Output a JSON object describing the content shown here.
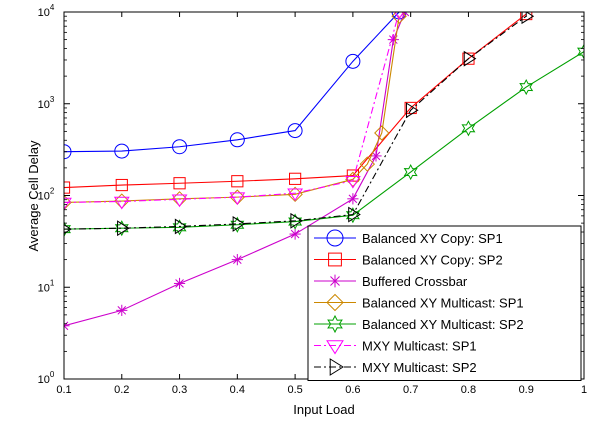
{
  "chart_data": {
    "type": "line",
    "xlabel": "Input Load",
    "ylabel": "Average Cell Delay",
    "xlim": [
      0.1,
      1.0
    ],
    "ylim": [
      1,
      10000
    ],
    "yscale": "log",
    "grid": false,
    "legend_position": "bottom-right",
    "x_ticks": [
      "0.1",
      "0.2",
      "0.3",
      "0.4",
      "0.5",
      "0.6",
      "0.7",
      "0.8",
      "0.9",
      "1"
    ],
    "y_ticks": [
      {
        "base": "10",
        "exp": "0",
        "value": 1
      },
      {
        "base": "10",
        "exp": "1",
        "value": 10
      },
      {
        "base": "10",
        "exp": "2",
        "value": 100
      },
      {
        "base": "10",
        "exp": "3",
        "value": 1000
      },
      {
        "base": "10",
        "exp": "4",
        "value": 10000
      }
    ],
    "series": [
      {
        "name": "Balanced XY Copy: SP1",
        "color": "#0000ff",
        "marker": "circle",
        "dash": "solid",
        "x": [
          0.1,
          0.2,
          0.3,
          0.4,
          0.5,
          0.6,
          0.68
        ],
        "y": [
          300,
          305,
          340,
          405,
          510,
          2900,
          10000
        ]
      },
      {
        "name": "Balanced XY Copy: SP2",
        "color": "#ff0000",
        "marker": "square",
        "dash": "solid",
        "x": [
          0.1,
          0.2,
          0.3,
          0.4,
          0.5,
          0.6,
          0.7,
          0.8,
          0.9
        ],
        "y": [
          122,
          130,
          136,
          143,
          152,
          165,
          900,
          3100,
          9500
        ]
      },
      {
        "name": "Buffered Crossbar",
        "color": "#cc00cc",
        "marker": "asterisk",
        "dash": "solid",
        "x": [
          0.1,
          0.2,
          0.3,
          0.4,
          0.5,
          0.6,
          0.64,
          0.67,
          0.69
        ],
        "y": [
          3.8,
          5.6,
          11,
          20,
          38,
          92,
          270,
          5000,
          10000
        ]
      },
      {
        "name": "Balanced XY Multicast: SP1",
        "color": "#cc8800",
        "marker": "diamond",
        "dash": "solid",
        "x": [
          0.1,
          0.2,
          0.3,
          0.4,
          0.5,
          0.6,
          0.625,
          0.65,
          0.68
        ],
        "y": [
          84,
          87,
          92,
          96,
          103,
          150,
          220,
          480,
          9000
        ]
      },
      {
        "name": "Balanced XY Multicast: SP2",
        "color": "#00a000",
        "marker": "star",
        "dash": "solid",
        "x": [
          0.1,
          0.2,
          0.3,
          0.4,
          0.5,
          0.6,
          0.7,
          0.8,
          0.9,
          1.0
        ],
        "y": [
          43,
          44,
          45,
          48,
          52,
          61,
          180,
          540,
          1520,
          3700
        ]
      },
      {
        "name": "MXY Multicast: SP1",
        "color": "#ff00ff",
        "marker": "triangle-down",
        "dash": "dashdot",
        "x": [
          0.1,
          0.2,
          0.3,
          0.4,
          0.5,
          0.6,
          0.68
        ],
        "y": [
          84,
          86,
          91,
          96,
          106,
          145,
          10000
        ]
      },
      {
        "name": "MXY Multicast: SP2",
        "color": "#000000",
        "marker": "triangle-right",
        "dash": "dashdot",
        "x": [
          0.1,
          0.2,
          0.3,
          0.4,
          0.5,
          0.6,
          0.7,
          0.8,
          0.9
        ],
        "y": [
          43,
          44,
          46,
          49,
          53,
          62,
          850,
          3100,
          9000
        ]
      }
    ]
  }
}
